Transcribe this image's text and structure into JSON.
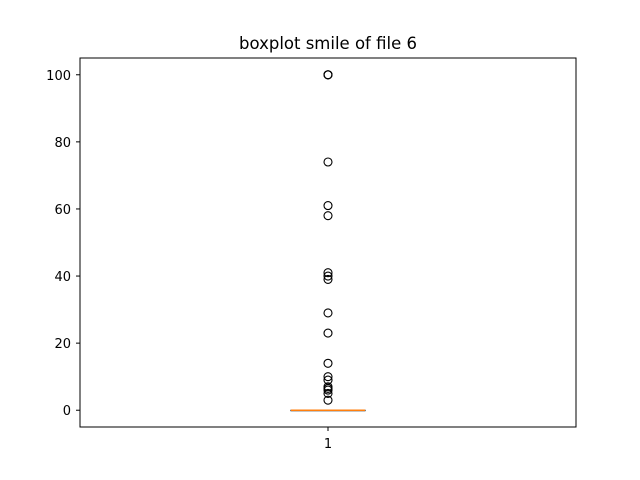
{
  "chart_data": {
    "type": "boxplot",
    "title": "boxplot smile of file 6",
    "xlabel": "",
    "ylabel": "",
    "categories": [
      "1"
    ],
    "ylim": [
      -5,
      105
    ],
    "yticks": [
      0,
      20,
      40,
      60,
      80,
      100
    ],
    "grid": false,
    "box": {
      "q1": 0,
      "median": 0,
      "q3": 0,
      "whisker_low": 0,
      "whisker_high": 0
    },
    "outliers": [
      3,
      5,
      6,
      6.5,
      7,
      9,
      10,
      14,
      23,
      29,
      39,
      40,
      41,
      58,
      61,
      74,
      100,
      100,
      100
    ],
    "colors": {
      "box": "#000000",
      "median": "#ff7f0e",
      "outlier": "#000000"
    }
  }
}
